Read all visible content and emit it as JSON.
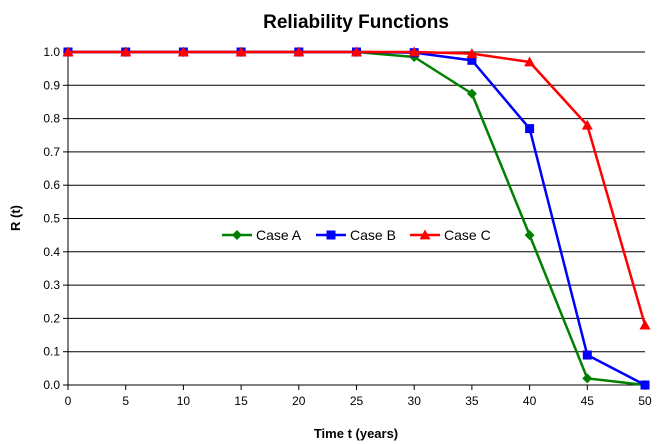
{
  "chart_data": {
    "type": "line",
    "title": "Reliability Functions",
    "xlabel": "Time t (years)",
    "ylabel": "R (t)",
    "x": [
      0,
      5,
      10,
      15,
      20,
      25,
      30,
      35,
      40,
      45,
      50
    ],
    "xticks": [
      "0",
      "5",
      "10",
      "15",
      "20",
      "25",
      "30",
      "35",
      "40",
      "45",
      "50"
    ],
    "yticks": [
      "0.0",
      "0.1",
      "0.2",
      "0.3",
      "0.4",
      "0.5",
      "0.6",
      "0.7",
      "0.8",
      "0.9",
      "1.0"
    ],
    "xlim": [
      0,
      50
    ],
    "ylim": [
      0,
      1.0
    ],
    "grid": "horizontal",
    "legend_position": "center",
    "series": [
      {
        "name": "Case A",
        "color": "#008000",
        "marker": "diamond",
        "values": [
          1.0,
          1.0,
          1.0,
          1.0,
          1.0,
          1.0,
          0.985,
          0.875,
          0.45,
          0.02,
          0.0
        ]
      },
      {
        "name": "Case B",
        "color": "#0000FF",
        "marker": "square",
        "values": [
          1.0,
          1.0,
          1.0,
          1.0,
          1.0,
          1.0,
          0.998,
          0.975,
          0.77,
          0.09,
          0.0
        ]
      },
      {
        "name": "Case C",
        "color": "#FF0000",
        "marker": "triangle",
        "values": [
          1.0,
          1.0,
          1.0,
          1.0,
          1.0,
          1.0,
          1.0,
          0.995,
          0.97,
          0.78,
          0.18
        ]
      }
    ]
  }
}
